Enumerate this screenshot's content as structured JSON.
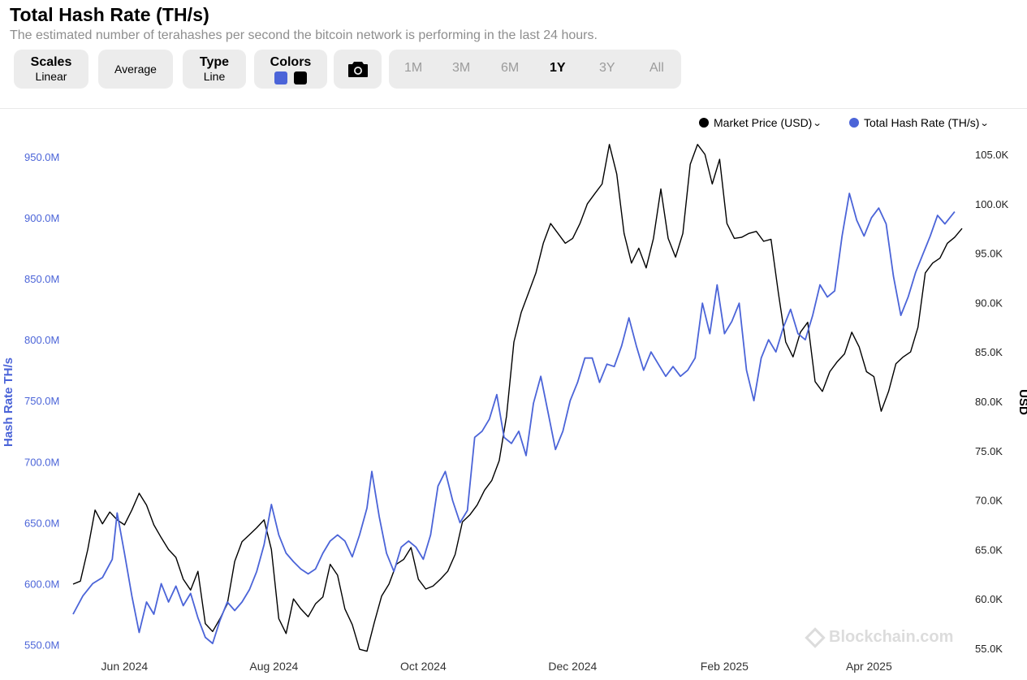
{
  "header": {
    "title": "Total Hash Rate (TH/s)",
    "subtitle": "The estimated number of terahashes per second the bitcoin network is performing in the last 24 hours."
  },
  "toolbar": {
    "scales_label": "Scales",
    "scales_value": "Linear",
    "average_label": "Average",
    "type_label": "Type",
    "type_value": "Line",
    "colors_label": "Colors",
    "color_hash": "#4b64d8",
    "color_price": "#000000",
    "camera_icon": "camera-icon",
    "ranges": [
      "1M",
      "3M",
      "6M",
      "1Y",
      "3Y",
      "All"
    ],
    "active_range": "1Y"
  },
  "legend": {
    "price_label": "Market Price (USD)",
    "hash_label": "Total Hash Rate (TH/s)"
  },
  "watermark": "Blockchain.com",
  "chart_data": {
    "type": "line",
    "x_ticks": [
      "Jun 2024",
      "Aug 2024",
      "Oct 2024",
      "Dec 2024",
      "Feb 2025",
      "Apr 2025"
    ],
    "y_left": {
      "label": "Hash Rate TH/s",
      "ticks": [
        "950.0M",
        "900.0M",
        "850.0M",
        "800.0M",
        "750.0M",
        "700.0M",
        "650.0M",
        "600.0M",
        "550.0M"
      ],
      "range": [
        547000000,
        952000000
      ]
    },
    "y_right": {
      "label": "USD",
      "ticks": [
        "105.0K",
        "100.0K",
        "95.0K",
        "90.0K",
        "85.0K",
        "80.0K",
        "75.0K",
        "70.0K",
        "65.0K",
        "60.0K",
        "55.0K"
      ],
      "range": [
        55000,
        105000
      ]
    },
    "x_range": [
      "2024-05-11",
      "2025-05-10"
    ],
    "series": [
      {
        "name": "Total Hash Rate (TH/s)",
        "axis": "left",
        "color": "#4b64d8",
        "points": [
          [
            "2024-05-11",
            575000000
          ],
          [
            "2024-05-15",
            590000000
          ],
          [
            "2024-05-19",
            600000000
          ],
          [
            "2024-05-23",
            605000000
          ],
          [
            "2024-05-27",
            620000000
          ],
          [
            "2024-05-29",
            658000000
          ],
          [
            "2024-06-01",
            625000000
          ],
          [
            "2024-06-04",
            590000000
          ],
          [
            "2024-06-07",
            560000000
          ],
          [
            "2024-06-10",
            585000000
          ],
          [
            "2024-06-13",
            575000000
          ],
          [
            "2024-06-16",
            600000000
          ],
          [
            "2024-06-19",
            585000000
          ],
          [
            "2024-06-22",
            598000000
          ],
          [
            "2024-06-25",
            582000000
          ],
          [
            "2024-06-28",
            592000000
          ],
          [
            "2024-07-01",
            572000000
          ],
          [
            "2024-07-04",
            556000000
          ],
          [
            "2024-07-07",
            551000000
          ],
          [
            "2024-07-10",
            570000000
          ],
          [
            "2024-07-13",
            585000000
          ],
          [
            "2024-07-16",
            578000000
          ],
          [
            "2024-07-19",
            585000000
          ],
          [
            "2024-07-22",
            595000000
          ],
          [
            "2024-07-25",
            610000000
          ],
          [
            "2024-07-28",
            632000000
          ],
          [
            "2024-07-31",
            665000000
          ],
          [
            "2024-08-03",
            640000000
          ],
          [
            "2024-08-06",
            625000000
          ],
          [
            "2024-08-09",
            618000000
          ],
          [
            "2024-08-12",
            612000000
          ],
          [
            "2024-08-15",
            608000000
          ],
          [
            "2024-08-18",
            612000000
          ],
          [
            "2024-08-21",
            625000000
          ],
          [
            "2024-08-24",
            635000000
          ],
          [
            "2024-08-27",
            640000000
          ],
          [
            "2024-08-30",
            635000000
          ],
          [
            "2024-09-02",
            622000000
          ],
          [
            "2024-09-05",
            640000000
          ],
          [
            "2024-09-08",
            662000000
          ],
          [
            "2024-09-10",
            692000000
          ],
          [
            "2024-09-13",
            655000000
          ],
          [
            "2024-09-16",
            625000000
          ],
          [
            "2024-09-19",
            610000000
          ],
          [
            "2024-09-22",
            630000000
          ],
          [
            "2024-09-25",
            635000000
          ],
          [
            "2024-09-28",
            630000000
          ],
          [
            "2024-10-01",
            620000000
          ],
          [
            "2024-10-04",
            640000000
          ],
          [
            "2024-10-07",
            680000000
          ],
          [
            "2024-10-10",
            692000000
          ],
          [
            "2024-10-13",
            668000000
          ],
          [
            "2024-10-16",
            650000000
          ],
          [
            "2024-10-19",
            660000000
          ],
          [
            "2024-10-22",
            720000000
          ],
          [
            "2024-10-25",
            725000000
          ],
          [
            "2024-10-28",
            735000000
          ],
          [
            "2024-10-31",
            755000000
          ],
          [
            "2024-11-03",
            720000000
          ],
          [
            "2024-11-06",
            715000000
          ],
          [
            "2024-11-09",
            725000000
          ],
          [
            "2024-11-12",
            705000000
          ],
          [
            "2024-11-15",
            748000000
          ],
          [
            "2024-11-18",
            770000000
          ],
          [
            "2024-11-21",
            740000000
          ],
          [
            "2024-11-24",
            710000000
          ],
          [
            "2024-11-27",
            725000000
          ],
          [
            "2024-11-30",
            750000000
          ],
          [
            "2024-12-03",
            765000000
          ],
          [
            "2024-12-06",
            785000000
          ],
          [
            "2024-12-09",
            785000000
          ],
          [
            "2024-12-12",
            765000000
          ],
          [
            "2024-12-15",
            780000000
          ],
          [
            "2024-12-18",
            778000000
          ],
          [
            "2024-12-21",
            795000000
          ],
          [
            "2024-12-24",
            818000000
          ],
          [
            "2024-12-27",
            795000000
          ],
          [
            "2024-12-30",
            775000000
          ],
          [
            "2025-01-02",
            790000000
          ],
          [
            "2025-01-05",
            780000000
          ],
          [
            "2025-01-08",
            770000000
          ],
          [
            "2025-01-11",
            778000000
          ],
          [
            "2025-01-14",
            770000000
          ],
          [
            "2025-01-17",
            775000000
          ],
          [
            "2025-01-20",
            785000000
          ],
          [
            "2025-01-23",
            830000000
          ],
          [
            "2025-01-26",
            805000000
          ],
          [
            "2025-01-29",
            845000000
          ],
          [
            "2025-02-01",
            805000000
          ],
          [
            "2025-02-04",
            815000000
          ],
          [
            "2025-02-07",
            830000000
          ],
          [
            "2025-02-10",
            775000000
          ],
          [
            "2025-02-13",
            750000000
          ],
          [
            "2025-02-16",
            785000000
          ],
          [
            "2025-02-19",
            800000000
          ],
          [
            "2025-02-22",
            790000000
          ],
          [
            "2025-02-25",
            810000000
          ],
          [
            "2025-02-28",
            825000000
          ],
          [
            "2025-03-03",
            805000000
          ],
          [
            "2025-03-06",
            800000000
          ],
          [
            "2025-03-09",
            820000000
          ],
          [
            "2025-03-12",
            845000000
          ],
          [
            "2025-03-15",
            835000000
          ],
          [
            "2025-03-18",
            840000000
          ],
          [
            "2025-03-21",
            885000000
          ],
          [
            "2025-03-24",
            920000000
          ],
          [
            "2025-03-27",
            898000000
          ],
          [
            "2025-03-30",
            885000000
          ],
          [
            "2025-04-02",
            900000000
          ],
          [
            "2025-04-05",
            908000000
          ],
          [
            "2025-04-08",
            895000000
          ],
          [
            "2025-04-11",
            852000000
          ],
          [
            "2025-04-14",
            820000000
          ],
          [
            "2025-04-17",
            835000000
          ],
          [
            "2025-04-20",
            855000000
          ],
          [
            "2025-04-23",
            870000000
          ],
          [
            "2025-04-26",
            885000000
          ],
          [
            "2025-04-29",
            902000000
          ],
          [
            "2025-05-02",
            895000000
          ],
          [
            "2025-05-06",
            905000000
          ]
        ]
      },
      {
        "name": "Market Price (USD)",
        "axis": "right",
        "color": "#000000",
        "points": [
          [
            "2024-05-11",
            61500
          ],
          [
            "2024-05-14",
            61800
          ],
          [
            "2024-05-17",
            65000
          ],
          [
            "2024-05-20",
            69000
          ],
          [
            "2024-05-23",
            67600
          ],
          [
            "2024-05-26",
            68800
          ],
          [
            "2024-05-29",
            68000
          ],
          [
            "2024-06-01",
            67500
          ],
          [
            "2024-06-04",
            69000
          ],
          [
            "2024-06-07",
            70700
          ],
          [
            "2024-06-10",
            69500
          ],
          [
            "2024-06-13",
            67500
          ],
          [
            "2024-06-16",
            66200
          ],
          [
            "2024-06-19",
            65000
          ],
          [
            "2024-06-22",
            64200
          ],
          [
            "2024-06-25",
            62000
          ],
          [
            "2024-06-28",
            60900
          ],
          [
            "2024-07-01",
            62800
          ],
          [
            "2024-07-04",
            57500
          ],
          [
            "2024-07-07",
            56700
          ],
          [
            "2024-07-10",
            58000
          ],
          [
            "2024-07-13",
            59500
          ],
          [
            "2024-07-16",
            63800
          ],
          [
            "2024-07-19",
            65800
          ],
          [
            "2024-07-22",
            66500
          ],
          [
            "2024-07-25",
            67200
          ],
          [
            "2024-07-28",
            68000
          ],
          [
            "2024-07-31",
            65000
          ],
          [
            "2024-08-03",
            58000
          ],
          [
            "2024-08-06",
            56500
          ],
          [
            "2024-08-09",
            60000
          ],
          [
            "2024-08-12",
            59000
          ],
          [
            "2024-08-15",
            58200
          ],
          [
            "2024-08-18",
            59500
          ],
          [
            "2024-08-21",
            60200
          ],
          [
            "2024-08-24",
            63500
          ],
          [
            "2024-08-27",
            62400
          ],
          [
            "2024-08-30",
            59000
          ],
          [
            "2024-09-02",
            57400
          ],
          [
            "2024-09-05",
            54900
          ],
          [
            "2024-09-08",
            54700
          ],
          [
            "2024-09-11",
            57600
          ],
          [
            "2024-09-14",
            60300
          ],
          [
            "2024-09-17",
            61500
          ],
          [
            "2024-09-20",
            63500
          ],
          [
            "2024-09-23",
            64000
          ],
          [
            "2024-09-26",
            65200
          ],
          [
            "2024-09-29",
            62000
          ],
          [
            "2024-10-02",
            61000
          ],
          [
            "2024-10-05",
            61300
          ],
          [
            "2024-10-08",
            62000
          ],
          [
            "2024-10-11",
            62800
          ],
          [
            "2024-10-14",
            64500
          ],
          [
            "2024-10-17",
            67800
          ],
          [
            "2024-10-20",
            68500
          ],
          [
            "2024-10-23",
            69500
          ],
          [
            "2024-10-26",
            71000
          ],
          [
            "2024-10-29",
            72000
          ],
          [
            "2024-11-01",
            74000
          ],
          [
            "2024-11-04",
            78500
          ],
          [
            "2024-11-07",
            86000
          ],
          [
            "2024-11-10",
            89000
          ],
          [
            "2024-11-13",
            91000
          ],
          [
            "2024-11-16",
            93000
          ],
          [
            "2024-11-19",
            96000
          ],
          [
            "2024-11-22",
            98000
          ],
          [
            "2024-11-25",
            97000
          ],
          [
            "2024-11-28",
            96000
          ],
          [
            "2024-12-01",
            96500
          ],
          [
            "2024-12-04",
            98000
          ],
          [
            "2024-12-07",
            100000
          ],
          [
            "2024-12-10",
            101000
          ],
          [
            "2024-12-13",
            102000
          ],
          [
            "2024-12-16",
            106000
          ],
          [
            "2024-12-19",
            103000
          ],
          [
            "2024-12-22",
            97000
          ],
          [
            "2024-12-25",
            94000
          ],
          [
            "2024-12-28",
            95500
          ],
          [
            "2024-12-31",
            93500
          ],
          [
            "2025-01-03",
            96500
          ],
          [
            "2025-01-06",
            101500
          ],
          [
            "2025-01-09",
            96500
          ],
          [
            "2025-01-12",
            94600
          ],
          [
            "2025-01-15",
            97000
          ],
          [
            "2025-01-18",
            104000
          ],
          [
            "2025-01-21",
            106000
          ],
          [
            "2025-01-24",
            105000
          ],
          [
            "2025-01-27",
            102000
          ],
          [
            "2025-01-30",
            104500
          ],
          [
            "2025-02-02",
            98000
          ],
          [
            "2025-02-05",
            96500
          ],
          [
            "2025-02-08",
            96600
          ],
          [
            "2025-02-11",
            97000
          ],
          [
            "2025-02-14",
            97200
          ],
          [
            "2025-02-17",
            96200
          ],
          [
            "2025-02-20",
            96400
          ],
          [
            "2025-02-23",
            91000
          ],
          [
            "2025-02-26",
            86000
          ],
          [
            "2025-03-01",
            84500
          ],
          [
            "2025-03-04",
            87000
          ],
          [
            "2025-03-07",
            88000
          ],
          [
            "2025-03-10",
            82000
          ],
          [
            "2025-03-13",
            81000
          ],
          [
            "2025-03-16",
            83000
          ],
          [
            "2025-03-19",
            84000
          ],
          [
            "2025-03-22",
            84800
          ],
          [
            "2025-03-25",
            87000
          ],
          [
            "2025-03-28",
            85500
          ],
          [
            "2025-03-31",
            83000
          ],
          [
            "2025-04-03",
            82500
          ],
          [
            "2025-04-06",
            79000
          ],
          [
            "2025-04-09",
            81000
          ],
          [
            "2025-04-12",
            83800
          ],
          [
            "2025-04-15",
            84500
          ],
          [
            "2025-04-18",
            85000
          ],
          [
            "2025-04-21",
            87500
          ],
          [
            "2025-04-24",
            93000
          ],
          [
            "2025-04-27",
            94000
          ],
          [
            "2025-04-30",
            94500
          ],
          [
            "2025-05-03",
            96000
          ],
          [
            "2025-05-06",
            96600
          ],
          [
            "2025-05-09",
            97500
          ]
        ]
      }
    ],
    "legend_position": "top-right",
    "grid": false
  }
}
